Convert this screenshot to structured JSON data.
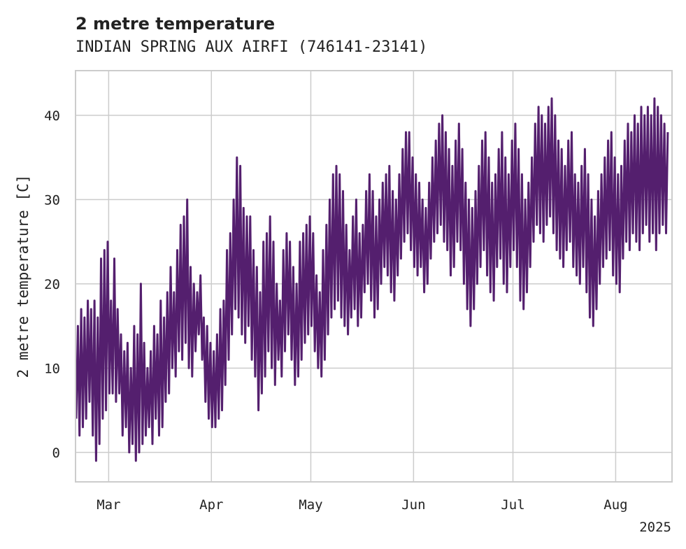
{
  "chart_data": {
    "type": "line",
    "title": "2 metre temperature",
    "subtitle": "INDIAN SPRING AUX AIRFI (746141-23141)",
    "ylabel": "2 metre temperature [C]",
    "xlabel": "",
    "year_label": "2025",
    "x_range": [
      "2025-02-19",
      "2025-08-18"
    ],
    "ylim": [
      -3.5,
      45.3
    ],
    "grid": true,
    "y_ticks": [
      0,
      10,
      20,
      30,
      40
    ],
    "x_ticks": [
      {
        "date": "2025-03-01",
        "label": "Mar"
      },
      {
        "date": "2025-04-01",
        "label": "Apr"
      },
      {
        "date": "2025-05-01",
        "label": "May"
      },
      {
        "date": "2025-06-01",
        "label": "Jun"
      },
      {
        "date": "2025-07-01",
        "label": "Jul"
      },
      {
        "date": "2025-08-01",
        "label": "Aug"
      }
    ],
    "color": "#541F6E",
    "series": [
      {
        "values": [
          [
            "2025-02-19",
            4,
            15
          ],
          [
            "2025-02-20",
            2,
            17
          ],
          [
            "2025-02-21",
            3,
            16
          ],
          [
            "2025-02-22",
            4,
            18
          ],
          [
            "2025-02-23",
            6,
            17
          ],
          [
            "2025-02-24",
            2,
            18
          ],
          [
            "2025-02-25",
            -1,
            16
          ],
          [
            "2025-02-26",
            1,
            23
          ],
          [
            "2025-02-27",
            4,
            24
          ],
          [
            "2025-02-28",
            5,
            25
          ],
          [
            "2025-03-01",
            7,
            18
          ],
          [
            "2025-03-02",
            7,
            23
          ],
          [
            "2025-03-03",
            6,
            17
          ],
          [
            "2025-03-04",
            7,
            14
          ],
          [
            "2025-03-05",
            2,
            12
          ],
          [
            "2025-03-06",
            3,
            13
          ],
          [
            "2025-03-07",
            0,
            10
          ],
          [
            "2025-03-08",
            1,
            15
          ],
          [
            "2025-03-09",
            -1,
            14
          ],
          [
            "2025-03-10",
            0,
            20
          ],
          [
            "2025-03-11",
            1,
            13
          ],
          [
            "2025-03-12",
            2,
            10
          ],
          [
            "2025-03-13",
            3,
            12
          ],
          [
            "2025-03-14",
            1,
            15
          ],
          [
            "2025-03-15",
            4,
            14
          ],
          [
            "2025-03-16",
            2,
            18
          ],
          [
            "2025-03-17",
            3,
            16
          ],
          [
            "2025-03-18",
            6,
            19
          ],
          [
            "2025-03-19",
            7,
            22
          ],
          [
            "2025-03-20",
            10,
            19
          ],
          [
            "2025-03-21",
            9,
            24
          ],
          [
            "2025-03-22",
            12,
            27
          ],
          [
            "2025-03-23",
            11,
            28
          ],
          [
            "2025-03-24",
            13,
            30
          ],
          [
            "2025-03-25",
            10,
            22
          ],
          [
            "2025-03-26",
            9,
            20
          ],
          [
            "2025-03-27",
            12,
            19
          ],
          [
            "2025-03-28",
            14,
            21
          ],
          [
            "2025-03-29",
            11,
            16
          ],
          [
            "2025-03-30",
            6,
            15
          ],
          [
            "2025-03-31",
            4,
            13
          ],
          [
            "2025-04-01",
            3,
            12
          ],
          [
            "2025-04-02",
            3,
            14
          ],
          [
            "2025-04-03",
            4,
            17
          ],
          [
            "2025-04-04",
            5,
            18
          ],
          [
            "2025-04-05",
            8,
            24
          ],
          [
            "2025-04-06",
            11,
            26
          ],
          [
            "2025-04-07",
            14,
            30
          ],
          [
            "2025-04-08",
            17,
            35
          ],
          [
            "2025-04-09",
            16,
            34
          ],
          [
            "2025-04-10",
            14,
            29
          ],
          [
            "2025-04-11",
            13,
            28
          ],
          [
            "2025-04-12",
            15,
            28
          ],
          [
            "2025-04-13",
            11,
            24
          ],
          [
            "2025-04-14",
            9,
            22
          ],
          [
            "2025-04-15",
            5,
            19
          ],
          [
            "2025-04-16",
            7,
            25
          ],
          [
            "2025-04-17",
            9,
            26
          ],
          [
            "2025-04-18",
            12,
            28
          ],
          [
            "2025-04-19",
            10,
            25
          ],
          [
            "2025-04-20",
            8,
            20
          ],
          [
            "2025-04-21",
            11,
            18
          ],
          [
            "2025-04-22",
            9,
            24
          ],
          [
            "2025-04-23",
            12,
            26
          ],
          [
            "2025-04-24",
            14,
            25
          ],
          [
            "2025-04-25",
            11,
            22
          ],
          [
            "2025-04-26",
            8,
            20
          ],
          [
            "2025-04-27",
            9,
            25
          ],
          [
            "2025-04-28",
            11,
            26
          ],
          [
            "2025-04-29",
            13,
            27
          ],
          [
            "2025-04-30",
            14,
            28
          ],
          [
            "2025-05-01",
            15,
            26
          ],
          [
            "2025-05-02",
            12,
            21
          ],
          [
            "2025-05-03",
            10,
            19
          ],
          [
            "2025-05-04",
            9,
            24
          ],
          [
            "2025-05-05",
            11,
            27
          ],
          [
            "2025-05-06",
            14,
            30
          ],
          [
            "2025-05-07",
            16,
            33
          ],
          [
            "2025-05-08",
            17,
            34
          ],
          [
            "2025-05-09",
            18,
            33
          ],
          [
            "2025-05-10",
            16,
            31
          ],
          [
            "2025-05-11",
            15,
            27
          ],
          [
            "2025-05-12",
            14,
            24
          ],
          [
            "2025-05-13",
            16,
            28
          ],
          [
            "2025-05-14",
            17,
            30
          ],
          [
            "2025-05-15",
            15,
            26
          ],
          [
            "2025-05-16",
            16,
            27
          ],
          [
            "2025-05-17",
            19,
            31
          ],
          [
            "2025-05-18",
            20,
            33
          ],
          [
            "2025-05-19",
            18,
            31
          ],
          [
            "2025-05-20",
            16,
            28
          ],
          [
            "2025-05-21",
            17,
            30
          ],
          [
            "2025-05-22",
            20,
            32
          ],
          [
            "2025-05-23",
            22,
            33
          ],
          [
            "2025-05-24",
            21,
            34
          ],
          [
            "2025-05-25",
            19,
            31
          ],
          [
            "2025-05-26",
            18,
            30
          ],
          [
            "2025-05-27",
            21,
            33
          ],
          [
            "2025-05-28",
            23,
            36
          ],
          [
            "2025-05-29",
            25,
            38
          ],
          [
            "2025-05-30",
            26,
            38
          ],
          [
            "2025-05-31",
            24,
            35
          ],
          [
            "2025-06-01",
            22,
            33
          ],
          [
            "2025-06-02",
            21,
            32
          ],
          [
            "2025-06-03",
            22,
            30
          ],
          [
            "2025-06-04",
            19,
            29
          ],
          [
            "2025-06-05",
            20,
            32
          ],
          [
            "2025-06-06",
            23,
            35
          ],
          [
            "2025-06-07",
            25,
            37
          ],
          [
            "2025-06-08",
            26,
            39
          ],
          [
            "2025-06-09",
            27,
            40
          ],
          [
            "2025-06-10",
            25,
            38
          ],
          [
            "2025-06-11",
            24,
            36
          ],
          [
            "2025-06-12",
            21,
            34
          ],
          [
            "2025-06-13",
            22,
            37
          ],
          [
            "2025-06-14",
            25,
            39
          ],
          [
            "2025-06-15",
            24,
            36
          ],
          [
            "2025-06-16",
            20,
            32
          ],
          [
            "2025-06-17",
            17,
            30
          ],
          [
            "2025-06-18",
            15,
            29
          ],
          [
            "2025-06-19",
            17,
            31
          ],
          [
            "2025-06-20",
            20,
            34
          ],
          [
            "2025-06-21",
            22,
            37
          ],
          [
            "2025-06-22",
            24,
            38
          ],
          [
            "2025-06-23",
            21,
            35
          ],
          [
            "2025-06-24",
            19,
            32
          ],
          [
            "2025-06-25",
            18,
            33
          ],
          [
            "2025-06-26",
            22,
            36
          ],
          [
            "2025-06-27",
            23,
            38
          ],
          [
            "2025-06-28",
            20,
            35
          ],
          [
            "2025-06-29",
            19,
            33
          ],
          [
            "2025-06-30",
            22,
            37
          ],
          [
            "2025-07-01",
            24,
            39
          ],
          [
            "2025-07-02",
            22,
            36
          ],
          [
            "2025-07-03",
            18,
            33
          ],
          [
            "2025-07-04",
            17,
            30
          ],
          [
            "2025-07-05",
            19,
            32
          ],
          [
            "2025-07-06",
            22,
            35
          ],
          [
            "2025-07-07",
            25,
            39
          ],
          [
            "2025-07-08",
            27,
            41
          ],
          [
            "2025-07-09",
            26,
            40
          ],
          [
            "2025-07-10",
            25,
            39
          ],
          [
            "2025-07-11",
            27,
            41
          ],
          [
            "2025-07-12",
            28,
            42
          ],
          [
            "2025-07-13",
            26,
            40
          ],
          [
            "2025-07-14",
            24,
            37
          ],
          [
            "2025-07-15",
            23,
            36
          ],
          [
            "2025-07-16",
            22,
            34
          ],
          [
            "2025-07-17",
            24,
            37
          ],
          [
            "2025-07-18",
            25,
            38
          ],
          [
            "2025-07-19",
            22,
            33
          ],
          [
            "2025-07-20",
            21,
            32
          ],
          [
            "2025-07-21",
            20,
            34
          ],
          [
            "2025-07-22",
            22,
            36
          ],
          [
            "2025-07-23",
            19,
            33
          ],
          [
            "2025-07-24",
            16,
            30
          ],
          [
            "2025-07-25",
            15,
            28
          ],
          [
            "2025-07-26",
            17,
            31
          ],
          [
            "2025-07-27",
            20,
            33
          ],
          [
            "2025-07-28",
            22,
            35
          ],
          [
            "2025-07-29",
            23,
            37
          ],
          [
            "2025-07-30",
            24,
            38
          ],
          [
            "2025-07-31",
            21,
            35
          ],
          [
            "2025-08-01",
            20,
            33
          ],
          [
            "2025-08-02",
            19,
            34
          ],
          [
            "2025-08-03",
            23,
            37
          ],
          [
            "2025-08-04",
            25,
            39
          ],
          [
            "2025-08-05",
            24,
            38
          ],
          [
            "2025-08-06",
            26,
            40
          ],
          [
            "2025-08-07",
            25,
            39
          ],
          [
            "2025-08-08",
            24,
            41
          ],
          [
            "2025-08-09",
            26,
            40
          ],
          [
            "2025-08-10",
            27,
            41
          ],
          [
            "2025-08-11",
            25,
            40
          ],
          [
            "2025-08-12",
            26,
            42
          ],
          [
            "2025-08-13",
            24,
            41
          ],
          [
            "2025-08-14",
            26,
            40
          ],
          [
            "2025-08-15",
            27,
            39
          ],
          [
            "2025-08-16",
            26,
            38
          ]
        ]
      }
    ]
  }
}
